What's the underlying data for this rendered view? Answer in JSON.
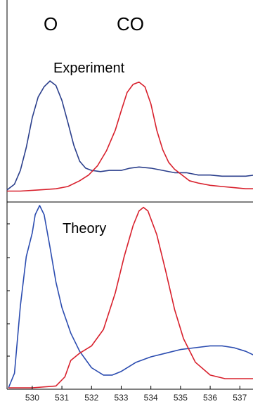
{
  "chart_data": [
    {
      "type": "line",
      "panel": "Experiment",
      "xlim": [
        529.2,
        537.6
      ],
      "ylim": [
        0,
        1.0
      ],
      "x_ticks": [],
      "series": [
        {
          "name": "O",
          "color": "#2b3f8c",
          "x": [
            529.15,
            529.4,
            529.6,
            529.8,
            530.0,
            530.2,
            530.4,
            530.6,
            530.8,
            531.0,
            531.2,
            531.4,
            531.6,
            531.8,
            532.0,
            532.3,
            532.6,
            533.0,
            533.3,
            533.6,
            534.0,
            534.4,
            534.8,
            535.2,
            535.6,
            536.0,
            536.4,
            536.8,
            537.2,
            537.5
          ],
          "y": [
            0.05,
            0.1,
            0.22,
            0.42,
            0.68,
            0.86,
            0.95,
            1.0,
            0.96,
            0.83,
            0.64,
            0.44,
            0.3,
            0.24,
            0.22,
            0.21,
            0.22,
            0.22,
            0.24,
            0.25,
            0.24,
            0.22,
            0.2,
            0.2,
            0.18,
            0.18,
            0.17,
            0.17,
            0.17,
            0.18
          ]
        },
        {
          "name": "CO",
          "color": "#d8202c",
          "x": [
            529.15,
            529.6,
            530.2,
            530.8,
            531.2,
            531.6,
            531.9,
            532.2,
            532.5,
            532.8,
            533.0,
            533.2,
            533.4,
            533.6,
            533.8,
            534.0,
            534.2,
            534.4,
            534.6,
            534.8,
            535.0,
            535.3,
            535.6,
            536.0,
            536.4,
            536.8,
            537.2,
            537.5
          ],
          "y": [
            0.04,
            0.04,
            0.05,
            0.06,
            0.08,
            0.13,
            0.18,
            0.26,
            0.39,
            0.57,
            0.74,
            0.9,
            0.97,
            0.99,
            0.95,
            0.8,
            0.57,
            0.4,
            0.29,
            0.23,
            0.19,
            0.13,
            0.11,
            0.09,
            0.08,
            0.07,
            0.06,
            0.06
          ]
        }
      ]
    },
    {
      "type": "line",
      "panel": "Theory",
      "xlim": [
        529.2,
        537.6
      ],
      "ylim": [
        0,
        1.0
      ],
      "x_ticks": [
        530,
        531,
        532,
        533,
        534,
        535,
        536,
        537
      ],
      "series": [
        {
          "name": "O",
          "color": "#2b4cb0",
          "x": [
            529.2,
            529.4,
            529.6,
            529.8,
            530.0,
            530.1,
            530.25,
            530.4,
            530.6,
            530.8,
            531.0,
            531.3,
            531.6,
            532.0,
            532.4,
            532.7,
            533.0,
            533.5,
            534.0,
            534.5,
            535.0,
            535.5,
            536.0,
            536.4,
            536.8,
            537.2,
            537.6
          ],
          "y": [
            0.0,
            0.08,
            0.45,
            0.72,
            0.85,
            0.95,
            1.0,
            0.95,
            0.77,
            0.58,
            0.44,
            0.3,
            0.2,
            0.11,
            0.07,
            0.07,
            0.09,
            0.14,
            0.17,
            0.19,
            0.21,
            0.22,
            0.23,
            0.23,
            0.22,
            0.2,
            0.17
          ]
        },
        {
          "name": "CO",
          "color": "#d8202c",
          "x": [
            529.2,
            530.0,
            530.8,
            531.1,
            531.3,
            531.6,
            532.0,
            532.4,
            532.8,
            533.1,
            533.4,
            533.6,
            533.75,
            533.9,
            534.2,
            534.5,
            534.8,
            535.1,
            535.5,
            536.0,
            536.5,
            537.0,
            537.6
          ],
          "y": [
            0.0,
            0.0,
            0.01,
            0.06,
            0.15,
            0.19,
            0.23,
            0.32,
            0.52,
            0.72,
            0.89,
            0.97,
            0.99,
            0.97,
            0.84,
            0.64,
            0.43,
            0.27,
            0.14,
            0.07,
            0.05,
            0.05,
            0.05
          ]
        }
      ]
    }
  ],
  "labels": {
    "left_peak": "O",
    "right_peak": "CO",
    "experiment": "Experiment",
    "theory": "Theory"
  }
}
